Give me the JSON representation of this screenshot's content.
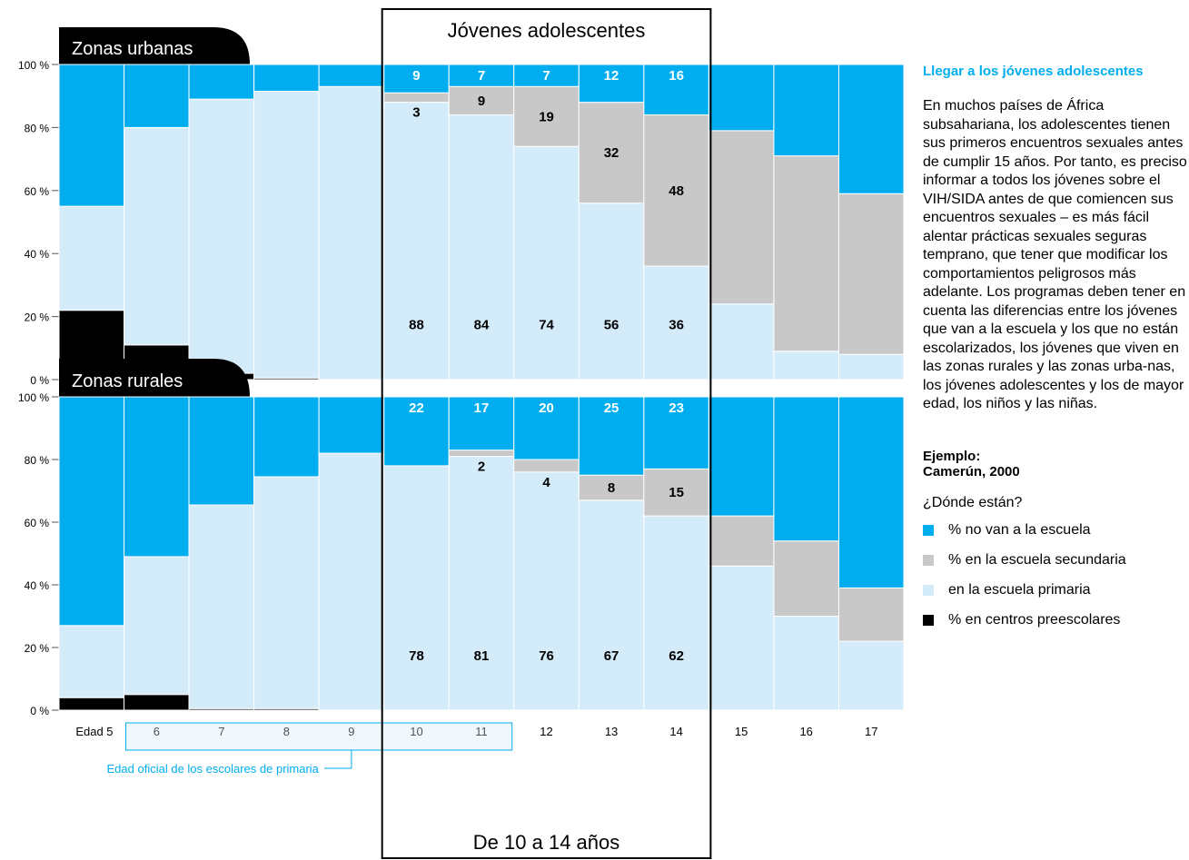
{
  "chart_data": [
    {
      "type": "bar",
      "stacked": true,
      "title": "Zonas urbanas",
      "x_prefix": "Edad",
      "categories": [
        "5",
        "6",
        "7",
        "8",
        "9",
        "10",
        "11",
        "12",
        "13",
        "14",
        "15",
        "16",
        "17"
      ],
      "series": [
        {
          "name": "% en centros preescolares",
          "color": "#000000",
          "values": [
            22,
            11,
            2,
            0.5,
            0,
            0,
            0,
            0,
            0,
            0,
            0,
            0,
            0
          ]
        },
        {
          "name": "en la escuela primaria",
          "color": "#d4ebfa",
          "values": [
            33,
            69,
            87,
            91,
            93,
            88,
            84,
            74,
            56,
            36,
            24,
            9,
            8
          ]
        },
        {
          "name": "% en la escuela secundaria",
          "color": "#c8c8c8",
          "values": [
            0,
            0,
            0,
            0,
            0,
            3,
            9,
            19,
            32,
            48,
            55,
            62,
            51
          ]
        },
        {
          "name": "% no van a la escuela",
          "color": "#00aeef",
          "values": [
            45,
            20,
            11,
            8.5,
            7,
            9,
            7,
            7,
            12,
            16,
            21,
            29,
            41
          ]
        }
      ],
      "data_labels": [
        {
          "category": "10",
          "primaria": "88",
          "secundaria": "3",
          "no_escuela": "9"
        },
        {
          "category": "11",
          "primaria": "84",
          "secundaria": "9",
          "no_escuela": "7"
        },
        {
          "category": "12",
          "primaria": "74",
          "secundaria": "19",
          "no_escuela": "7"
        },
        {
          "category": "13",
          "primaria": "56",
          "secundaria": "32",
          "no_escuela": "12"
        },
        {
          "category": "14",
          "primaria": "36",
          "secundaria": "48",
          "no_escuela": "16"
        }
      ],
      "yticks": [
        "0 %",
        "20 %",
        "40 %",
        "60 %",
        "80 %",
        "100 %"
      ],
      "ylim": [
        0,
        100
      ]
    },
    {
      "type": "bar",
      "stacked": true,
      "title": "Zonas rurales",
      "x_prefix": "Edad",
      "categories": [
        "5",
        "6",
        "7",
        "8",
        "9",
        "10",
        "11",
        "12",
        "13",
        "14",
        "15",
        "16",
        "17"
      ],
      "series": [
        {
          "name": "% en centros preescolares",
          "color": "#000000",
          "values": [
            4,
            5,
            0.5,
            0.5,
            0,
            0,
            0,
            0,
            0,
            0,
            0,
            0,
            0
          ]
        },
        {
          "name": "en la escuela primaria",
          "color": "#d4ebfa",
          "values": [
            23,
            44,
            65,
            74,
            82,
            78,
            81,
            76,
            67,
            62,
            46,
            30,
            22
          ]
        },
        {
          "name": "% en la escuela secundaria",
          "color": "#c8c8c8",
          "values": [
            0,
            0,
            0,
            0,
            0,
            0,
            2,
            4,
            8,
            15,
            16,
            24,
            17
          ]
        },
        {
          "name": "% no van a la escuela",
          "color": "#00aeef",
          "values": [
            73,
            51,
            34.5,
            25.5,
            18,
            22,
            17,
            20,
            25,
            23,
            38,
            46,
            61
          ]
        }
      ],
      "data_labels": [
        {
          "category": "10",
          "primaria": "78",
          "secundaria": "",
          "no_escuela": "22"
        },
        {
          "category": "11",
          "primaria": "81",
          "secundaria": "2",
          "no_escuela": "17"
        },
        {
          "category": "12",
          "primaria": "76",
          "secundaria": "4",
          "no_escuela": "20"
        },
        {
          "category": "13",
          "primaria": "67",
          "secundaria": "8",
          "no_escuela": "25"
        },
        {
          "category": "14",
          "primaria": "62",
          "secundaria": "15",
          "no_escuela": "23"
        }
      ],
      "yticks": [
        "0 %",
        "20 %",
        "40 %",
        "60 %",
        "80 %",
        "100 %"
      ],
      "ylim": [
        0,
        100
      ]
    }
  ],
  "highlight": {
    "title": "Jóvenes adolescentes",
    "footer": "De 10 a 14 años",
    "from_category": "10",
    "to_category": "14"
  },
  "primary_school_note": {
    "label": "Edad oficial de los escolares de primaria",
    "from_category": "6",
    "to_category": "11",
    "color": "#00aeef"
  },
  "sidebar": {
    "heading": "Llegar a los jóvenes adolescentes",
    "paragraph": "En muchos países de África subsahariana, los adolescentes tienen sus primeros encuentros sexuales antes de cumplir 15 años. Por tanto, es preciso informar a todos los jóvenes sobre el VIH/SIDA antes de que comiencen sus encuentros sexuales – es más fácil alentar prácticas sexuales seguras temprano, que tener que modificar los comportamientos peligrosos más adelante. Los programas deben tener en cuenta las diferencias entre los jóvenes que van a la escuela y los que no están escolarizados, los jóvenes que viven en las zonas rurales y las zonas urba-nas, los jóvenes adolescentes y los de mayor edad, los niños y las niñas.",
    "example_line1": "Ejemplo:",
    "example_line2": "Camerún, 2000",
    "where": "¿Dónde están?",
    "legend": [
      {
        "label": "% no van a la escuela",
        "color": "#00aeef"
      },
      {
        "label": "% en la escuela secundaria",
        "color": "#c8c8c8"
      },
      {
        "label": "en la escuela primaria",
        "color": "#d4ebfa"
      },
      {
        "label": "% en centros preescolares",
        "color": "#000000"
      }
    ]
  }
}
